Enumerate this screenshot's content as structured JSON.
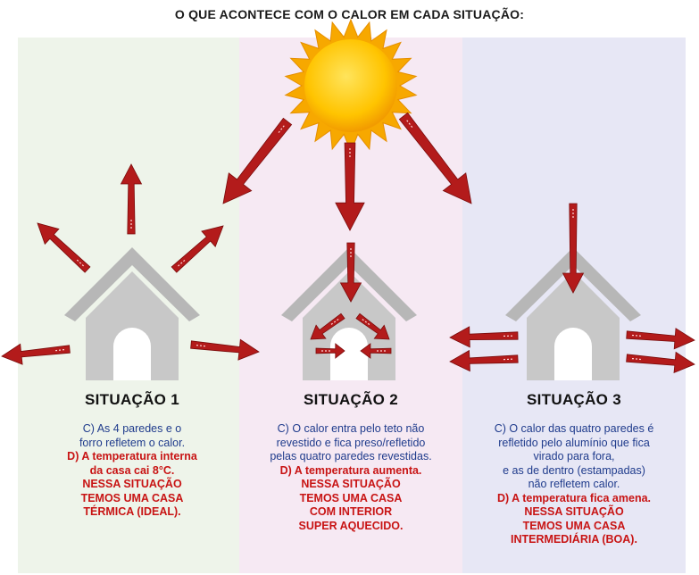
{
  "title": "O QUE ACONTECE COM O CALOR EM CADA SITUAÇÃO:",
  "colors": {
    "panel1": "#eef4ea",
    "panel2": "#f6e9f3",
    "panel3": "#e7e7f5",
    "arrow": "#b31b1b",
    "house": "#c8c8c8",
    "sun": "#f7b500",
    "blue_text": "#1f3b8c",
    "red_text": "#c81414"
  },
  "situations": [
    {
      "heading": "SITUAÇÃO 1",
      "lines": [
        {
          "text": "C) As 4 paredes e o",
          "color": "blue"
        },
        {
          "text": "forro refletem o calor.",
          "color": "blue"
        },
        {
          "text": "D) A temperatura interna",
          "color": "red"
        },
        {
          "text": "da casa cai 8°C.",
          "color": "red"
        },
        {
          "text": "NESSA SITUAÇÃO",
          "color": "red"
        },
        {
          "text": "TEMOS UMA CASA",
          "color": "red"
        },
        {
          "text": "TÉRMICA (IDEAL).",
          "color": "red"
        }
      ]
    },
    {
      "heading": "SITUAÇÃO 2",
      "lines": [
        {
          "text": "C) O calor entra pelo teto não",
          "color": "blue"
        },
        {
          "text": "revestido e fica preso/refletido",
          "color": "blue"
        },
        {
          "text": "pelas quatro paredes revestidas.",
          "color": "blue"
        },
        {
          "text": "D) A temperatura aumenta.",
          "color": "red"
        },
        {
          "text": "NESSA SITUAÇÃO",
          "color": "red"
        },
        {
          "text": "TEMOS UMA CASA",
          "color": "red"
        },
        {
          "text": "COM INTERIOR",
          "color": "red"
        },
        {
          "text": "SUPER AQUECIDO.",
          "color": "red"
        }
      ]
    },
    {
      "heading": "SITUAÇÃO 3",
      "lines": [
        {
          "text": "C) O calor das quatro paredes é",
          "color": "blue"
        },
        {
          "text": "refletido pelo alumínio que fica",
          "color": "blue"
        },
        {
          "text": "virado para fora,",
          "color": "blue"
        },
        {
          "text": "e as de dentro (estampadas)",
          "color": "blue"
        },
        {
          "text": "não refletem calor.",
          "color": "blue"
        },
        {
          "text": "D) A temperatura fica amena.",
          "color": "red"
        },
        {
          "text": "NESSA SITUAÇÃO",
          "color": "red"
        },
        {
          "text": "TEMOS UMA CASA",
          "color": "red"
        },
        {
          "text": "INTERMEDIÁRIA (BOA).",
          "color": "red"
        }
      ]
    }
  ]
}
